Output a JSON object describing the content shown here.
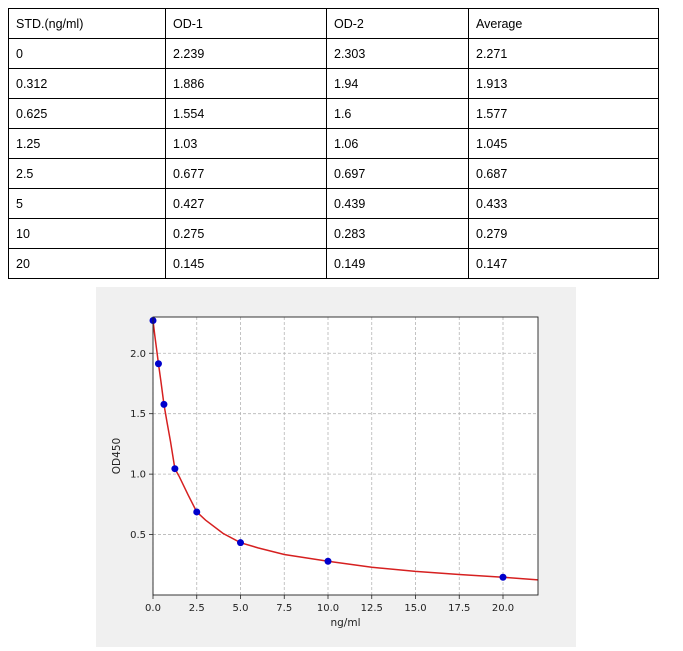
{
  "table": {
    "headers": [
      "STD.(ng/ml)",
      "OD-1",
      "OD-2",
      "Average"
    ],
    "rows": [
      [
        "0",
        "2.239",
        "2.303",
        "2.271"
      ],
      [
        "0.312",
        "1.886",
        "1.94",
        "1.913"
      ],
      [
        "0.625",
        "1.554",
        "1.6",
        "1.577"
      ],
      [
        "1.25",
        "1.03",
        "1.06",
        "1.045"
      ],
      [
        "2.5",
        "0.677",
        "0.697",
        "0.687"
      ],
      [
        "5",
        "0.427",
        "0.439",
        "0.433"
      ],
      [
        "10",
        "0.275",
        "0.283",
        "0.279"
      ],
      [
        "20",
        "0.145",
        "0.149",
        "0.147"
      ]
    ]
  },
  "chart_data": {
    "type": "scatter",
    "xlabel": "ng/ml",
    "ylabel": "OD450",
    "xlim": [
      0,
      22
    ],
    "ylim": [
      0,
      2.3
    ],
    "xticks": [
      "0.0",
      "2.5",
      "5.0",
      "7.5",
      "10.0",
      "12.5",
      "15.0",
      "17.5",
      "20.0"
    ],
    "yticks": [
      "0.5",
      "1.0",
      "1.5",
      "2.0"
    ],
    "grid": true,
    "series": [
      {
        "kind": "points",
        "color": "#0000cc",
        "x": [
          0,
          0.312,
          0.625,
          1.25,
          2.5,
          5,
          10,
          20
        ],
        "y": [
          2.271,
          1.913,
          1.577,
          1.045,
          0.687,
          0.433,
          0.279,
          0.147
        ]
      },
      {
        "kind": "fit-curve",
        "color": "#d62020",
        "x": [
          0,
          0.1,
          0.2,
          0.312,
          0.45,
          0.625,
          0.8,
          1.0,
          1.25,
          1.5,
          2.0,
          2.5,
          3.0,
          4.0,
          5.0,
          6.0,
          7.5,
          10.0,
          12.5,
          15.0,
          17.5,
          20.0,
          22.0
        ],
        "y": [
          2.271,
          2.15,
          2.04,
          1.913,
          1.77,
          1.577,
          1.43,
          1.27,
          1.045,
          0.98,
          0.83,
          0.687,
          0.62,
          0.51,
          0.433,
          0.39,
          0.335,
          0.279,
          0.23,
          0.195,
          0.17,
          0.147,
          0.125
        ]
      }
    ]
  }
}
